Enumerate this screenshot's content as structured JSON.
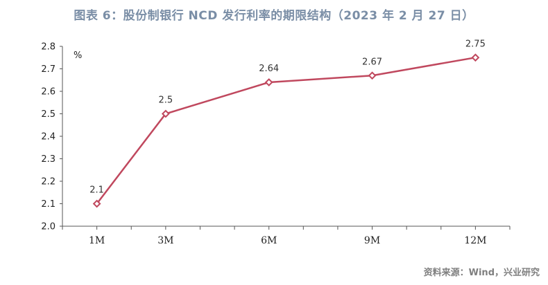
{
  "title": "图表 6：股份制银行 NCD 发行利率的期限结构（2023 年 2 月 27 日）",
  "source": "资料来源：Wind，兴业研究",
  "colors": {
    "line": "#c0485e",
    "title": "#7a8ea6",
    "axis": "#555555"
  },
  "chart_data": {
    "type": "line",
    "categories": [
      "1M",
      "3M",
      "6M",
      "9M",
      "12M"
    ],
    "x": [
      1,
      3,
      6,
      9,
      12
    ],
    "values": [
      2.1,
      2.5,
      2.64,
      2.67,
      2.75
    ],
    "data_labels": [
      "2.1",
      "2.5",
      "2.64",
      "2.67",
      "2.75"
    ],
    "ylabel": "%",
    "ylim": [
      2.0,
      2.8
    ],
    "yticks": [
      "2.0",
      "2.1",
      "2.2",
      "2.3",
      "2.4",
      "2.5",
      "2.6",
      "2.7",
      "2.8"
    ],
    "xlim": [
      0,
      13
    ],
    "grid": false,
    "marker": "diamond-hollow"
  }
}
